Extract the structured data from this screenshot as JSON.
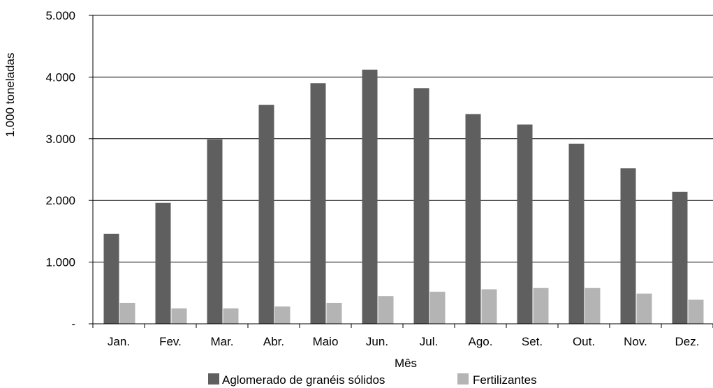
{
  "chart_data": {
    "type": "bar",
    "title": "",
    "xlabel": "Mês",
    "ylabel": "1.000 toneladas",
    "ylim": [
      0,
      5000
    ],
    "yticks": [
      0,
      1000,
      2000,
      3000,
      4000,
      5000
    ],
    "ytick_labels": [
      "-",
      "1.000",
      "2.000",
      "3.000",
      "4.000",
      "5.000"
    ],
    "grid": true,
    "legend_position": "bottom",
    "categories": [
      "Jan.",
      "Fev.",
      "Mar.",
      "Abr.",
      "Maio",
      "Jun.",
      "Jul.",
      "Ago.",
      "Set.",
      "Out.",
      "Nov.",
      "Dez."
    ],
    "series": [
      {
        "name": "Aglomerado de granéis sólidos",
        "color": "#5f5f5f",
        "values": [
          1460,
          1960,
          2990,
          3550,
          3900,
          4120,
          3820,
          3400,
          3230,
          2920,
          2520,
          2140
        ]
      },
      {
        "name": "Fertilizantes",
        "color": "#b4b4b4",
        "values": [
          340,
          250,
          250,
          280,
          340,
          450,
          520,
          560,
          580,
          580,
          490,
          390
        ]
      }
    ]
  }
}
